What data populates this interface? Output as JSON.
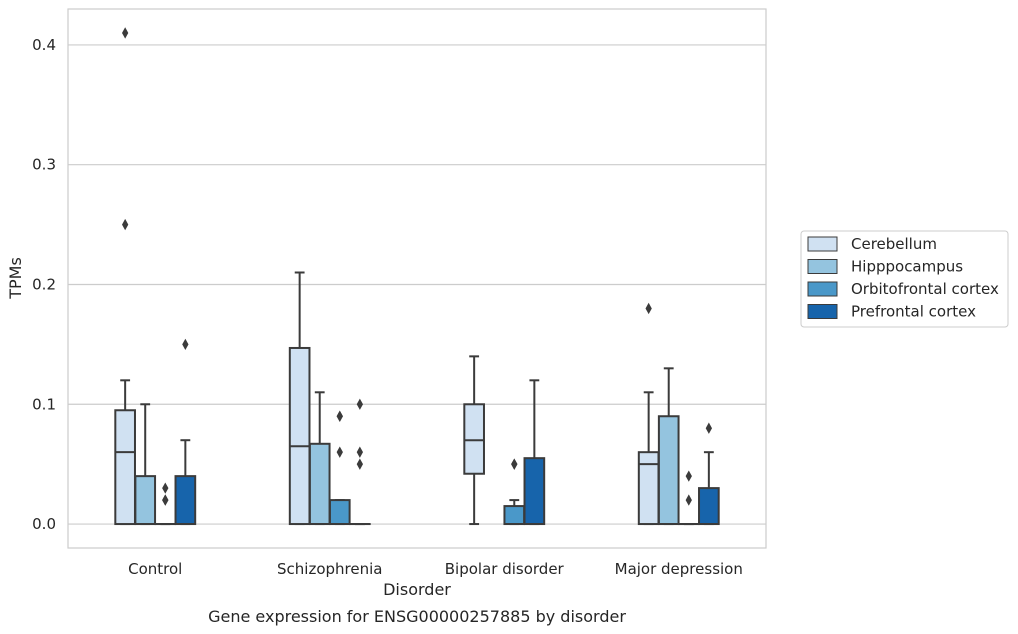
{
  "chart_data": {
    "type": "box",
    "caption": "Gene expression for ENSG00000257885 by disorder",
    "xlabel": "Disorder",
    "ylabel": "TPMs",
    "ylim": [
      -0.02,
      0.43
    ],
    "yticks": [
      0.0,
      0.1,
      0.2,
      0.3,
      0.4
    ],
    "ytick_labels": [
      "0.0",
      "0.1",
      "0.2",
      "0.3",
      "0.4"
    ],
    "grid": true,
    "legend_placement": "right-outside",
    "categories": [
      "Control",
      "Schizophrenia",
      "Bipolar disorder",
      "Major depression"
    ],
    "series": [
      {
        "name": "Cerebellum",
        "color": "#d0e1f2",
        "boxes": [
          {
            "whislo": 0.0,
            "q1": 0.0,
            "med": 0.06,
            "q3": 0.095,
            "whishi": 0.12,
            "fliers": [
              0.25,
              0.41
            ]
          },
          {
            "whislo": 0.0,
            "q1": 0.0,
            "med": 0.065,
            "q3": 0.147,
            "whishi": 0.21,
            "fliers": []
          },
          {
            "whislo": 0.0,
            "q1": 0.042,
            "med": 0.07,
            "q3": 0.1,
            "whishi": 0.14,
            "fliers": []
          },
          {
            "whislo": 0.0,
            "q1": 0.0,
            "med": 0.05,
            "q3": 0.06,
            "whishi": 0.11,
            "fliers": [
              0.18
            ]
          }
        ]
      },
      {
        "name": "Hipppocampus",
        "color": "#94c4df",
        "boxes": [
          {
            "whislo": 0.0,
            "q1": 0.0,
            "med": 0.0,
            "q3": 0.04,
            "whishi": 0.1,
            "fliers": []
          },
          {
            "whislo": 0.0,
            "q1": 0.0,
            "med": 0.0,
            "q3": 0.067,
            "whishi": 0.11,
            "fliers": []
          },
          null,
          {
            "whislo": 0.0,
            "q1": 0.0,
            "med": 0.0,
            "q3": 0.09,
            "whishi": 0.13,
            "fliers": []
          }
        ]
      },
      {
        "name": "Orbitofrontal cortex",
        "color": "#4a98c9",
        "boxes": [
          {
            "whislo": 0.0,
            "q1": 0.0,
            "med": 0.0,
            "q3": 0.0,
            "whishi": 0.0,
            "fliers": [
              0.02,
              0.02,
              0.03
            ]
          },
          {
            "whislo": 0.0,
            "q1": 0.0,
            "med": 0.0,
            "q3": 0.02,
            "whishi": 0.02,
            "fliers": [
              0.06,
              0.09,
              0.09
            ]
          },
          {
            "whislo": 0.0,
            "q1": 0.0,
            "med": 0.0,
            "q3": 0.015,
            "whishi": 0.02,
            "fliers": [
              0.05,
              0.05
            ]
          },
          {
            "whislo": 0.0,
            "q1": 0.0,
            "med": 0.0,
            "q3": 0.0,
            "whishi": 0.0,
            "fliers": [
              0.02,
              0.04
            ]
          }
        ]
      },
      {
        "name": "Prefrontal cortex",
        "color": "#1764ab",
        "boxes": [
          {
            "whislo": 0.0,
            "q1": 0.0,
            "med": 0.0,
            "q3": 0.04,
            "whishi": 0.07,
            "fliers": [
              0.15
            ]
          },
          {
            "whislo": 0.0,
            "q1": 0.0,
            "med": 0.0,
            "q3": 0.0,
            "whishi": 0.0,
            "fliers": [
              0.05,
              0.06,
              0.1
            ]
          },
          {
            "whislo": 0.0,
            "q1": 0.0,
            "med": 0.0,
            "q3": 0.055,
            "whishi": 0.12,
            "fliers": []
          },
          {
            "whislo": 0.0,
            "q1": 0.0,
            "med": 0.0,
            "q3": 0.03,
            "whishi": 0.06,
            "fliers": [
              0.08
            ]
          }
        ]
      }
    ]
  }
}
